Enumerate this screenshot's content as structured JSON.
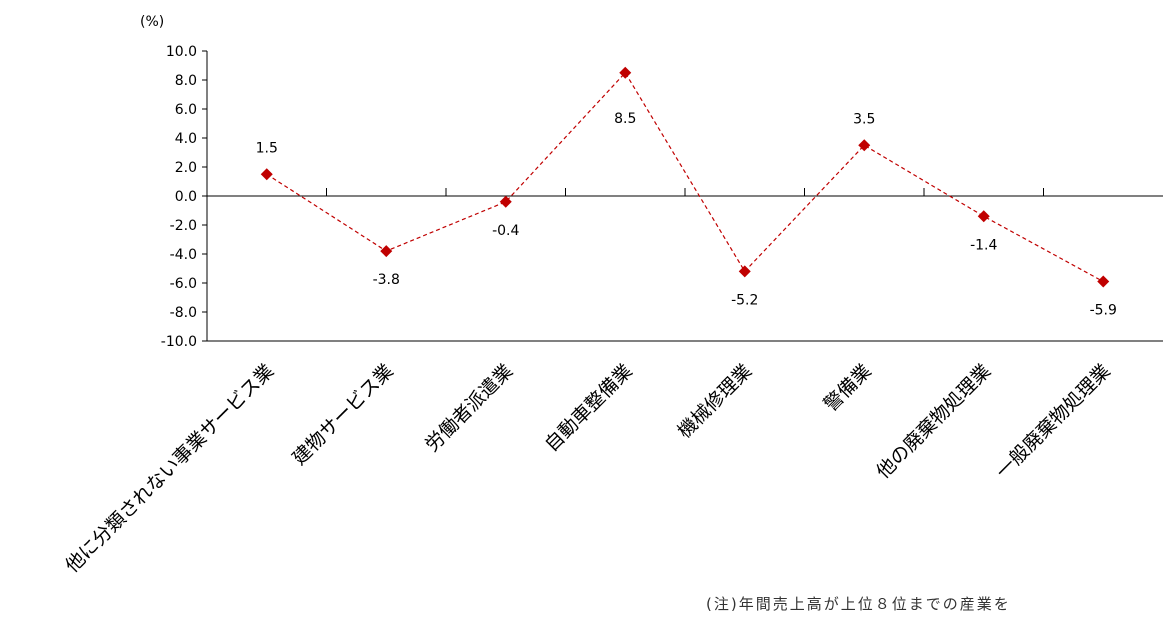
{
  "chart_data": {
    "type": "line",
    "unit_label": "(%)",
    "categories": [
      "他に分類されない事業サービス業",
      "建物サービス業",
      "労働者派遣業",
      "自動車整備業",
      "機械修理業",
      "警備業",
      "他の廃棄物処理業",
      "一般廃棄物処理業"
    ],
    "series": [
      {
        "values": [
          1.5,
          -3.8,
          -0.4,
          8.5,
          -5.2,
          3.5,
          -1.4,
          -5.9
        ]
      }
    ],
    "data_labels": [
      "1.5",
      "-3.8",
      "-0.4",
      "8.5",
      "-5.2",
      "3.5",
      "-1.4",
      "-5.9"
    ],
    "y_ticks": [
      "10.0",
      "8.0",
      "6.0",
      "4.0",
      "2.0",
      "0.0",
      "-2.0",
      "-4.0",
      "-6.0",
      "-8.0",
      "-10.0"
    ],
    "ylim": [
      -10,
      10
    ],
    "grid": false,
    "legend": "none",
    "colors": {
      "marker": "#c00000",
      "line": "#c00000"
    }
  },
  "note": "(注)年間売上高が上位８位までの産業を"
}
